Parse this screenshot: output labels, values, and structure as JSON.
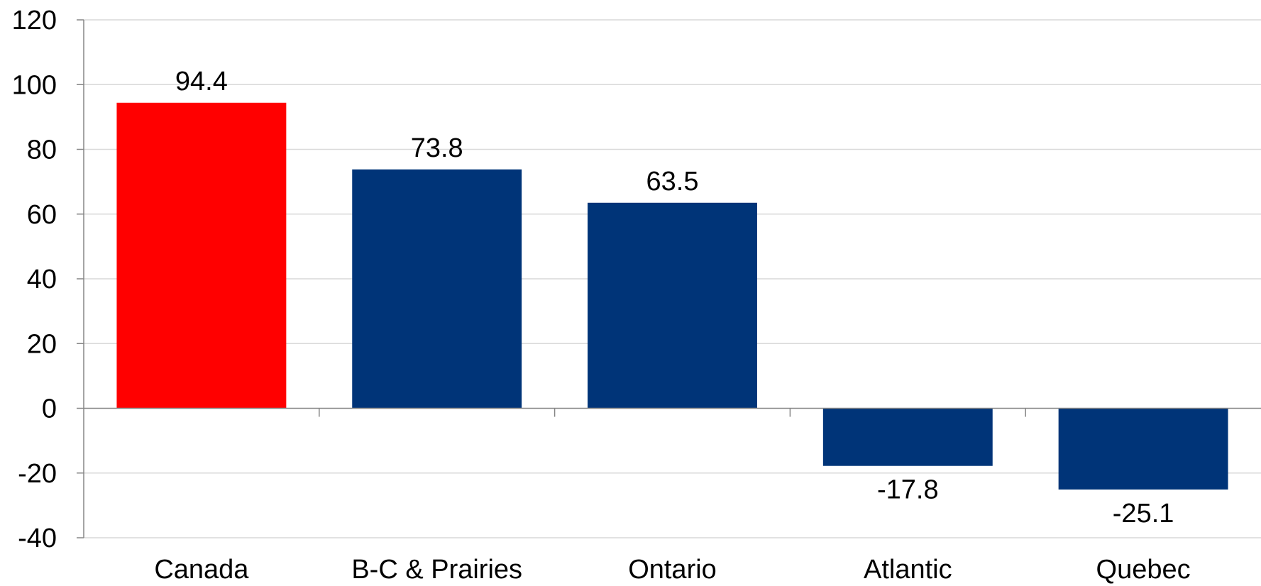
{
  "chart_data": {
    "type": "bar",
    "title": "",
    "xlabel": "",
    "ylabel": "",
    "categories": [
      "Canada",
      "B-C & Prairies",
      "Ontario",
      "Atlantic",
      "Quebec"
    ],
    "values": [
      94.4,
      73.8,
      63.5,
      -17.8,
      -25.1
    ],
    "data_labels": [
      "94.4",
      "73.8",
      "63.5",
      "-17.8",
      "-25.1"
    ],
    "bar_colors": [
      "#ff0000",
      "#003478",
      "#003478",
      "#003478",
      "#003478"
    ],
    "ylim": [
      -40,
      120
    ],
    "yticks": [
      120,
      100,
      80,
      60,
      40,
      20,
      0,
      -20,
      -40
    ],
    "ytick_labels": [
      "120",
      "100",
      "80",
      "60",
      "40",
      "20",
      "0",
      "-20",
      "-40"
    ],
    "grid": true,
    "legend": "none"
  }
}
